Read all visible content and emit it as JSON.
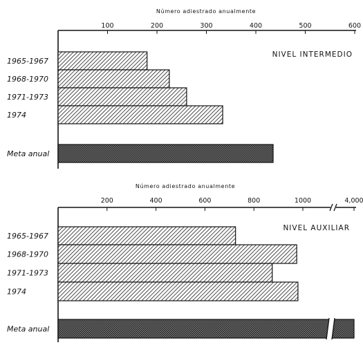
{
  "chart_data": [
    {
      "type": "bar",
      "orientation": "horizontal",
      "title": "NIVEL INTERMEDIO",
      "xlabel": "Número adiestrado anualmente",
      "xlim": [
        0,
        600
      ],
      "ticks": [
        100,
        200,
        300,
        400,
        500,
        600
      ],
      "tick_labels": [
        "100",
        "200",
        "300",
        "400",
        "500",
        "600"
      ],
      "categories": [
        "1965-1967",
        "1968-1970",
        "1971-1973",
        "1974",
        "Meta anual"
      ],
      "values": [
        180,
        225,
        260,
        333,
        435
      ],
      "axis_break": false,
      "grid": false
    },
    {
      "type": "bar",
      "orientation": "horizontal",
      "title": "NIVEL AUXILIAR",
      "xlabel": "Número adiestrado anualmente",
      "xlim": [
        0,
        4000
      ],
      "ticks": [
        200,
        400,
        600,
        800,
        1000,
        4000
      ],
      "tick_labels": [
        "200",
        "400",
        "600",
        "800",
        "1000",
        "4,000"
      ],
      "categories": [
        "1965-1967",
        "1968-1970",
        "1971-1973",
        "1974",
        "Meta anual"
      ],
      "values": [
        725,
        975,
        875,
        980,
        4000
      ],
      "axis_break": true,
      "break_between": [
        1000,
        4000
      ],
      "grid": false
    }
  ],
  "colors": {
    "ink": "#111111",
    "background": "#ffffff"
  },
  "patterns": {
    "period_bars": "diagonal-hatch",
    "goal_bar": "crosshatch"
  }
}
